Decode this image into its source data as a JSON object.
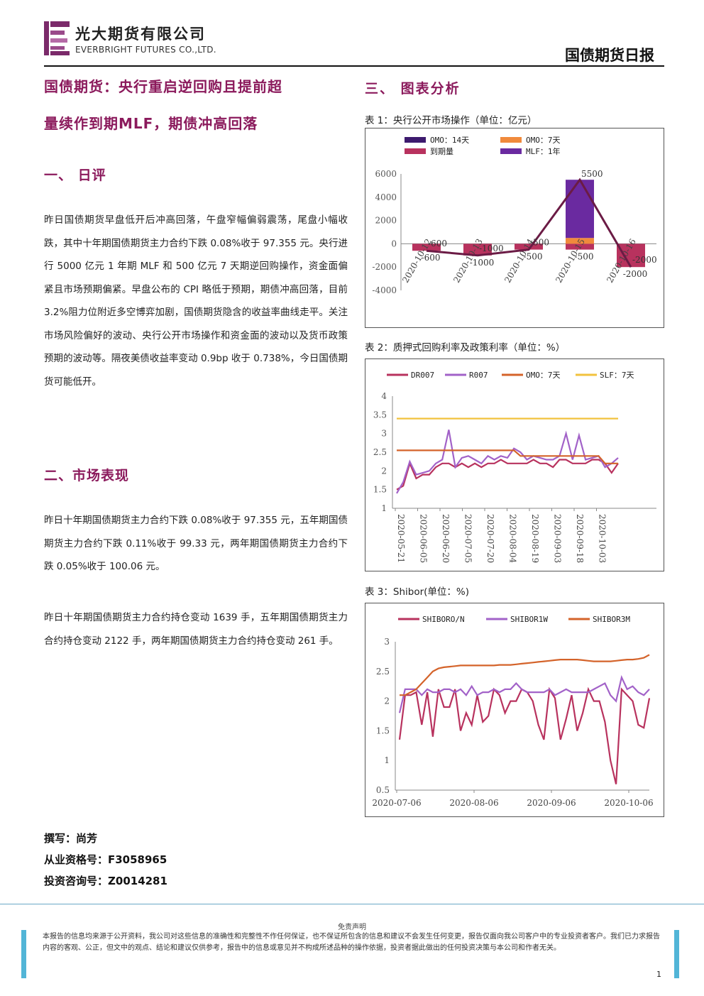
{
  "header": {
    "company_cn": "光大期货有限公司",
    "company_en": "EVERBRIGHT FUTURES CO.,LTD.",
    "doc_type": "国债期货日报"
  },
  "title": {
    "line1": "国债期货：央行重启逆回购且提前超",
    "line2": "量续作到期MLF，期债冲高回落"
  },
  "section1": {
    "heading": "一、  日评",
    "paragraph": "昨日国债期货早盘低开后冲高回落，午盘窄幅偏弱震荡，尾盘小幅收跌，其中十年期国债期货主力合约下跌 0.08%收于 97.355 元。央行进行 5000 亿元 1 年期 MLF 和 500 亿元 7 天期逆回购操作，资金面偏紧且市场预期偏紧。早盘公布的 CPI 略低于预期，期债冲高回落，目前 3.2%阻力位附近多空博弈加剧，国债期货隐含的收益率曲线走平。关注市场风险偏好的波动、央行公开市场操作和资金面的波动以及货币政策预期的波动等。隔夜美债收益率变动 0.9bp 收于 0.738%，今日国债期货可能低开。"
  },
  "section2": {
    "heading": "二、市场表现",
    "para1": "昨日十年期国债期货主力合约下跌 0.08%收于 97.355 元，五年期国债期货主力合约下跌 0.11%收于 99.33 元，两年期国债期货主力合约下跌 0.05%收于 100.06 元。",
    "para2": "昨日十年期国债期货主力合约持仓变动 1639 手，五年期国债期货主力合约持仓变动 2122 手，两年期国债期货主力合约持仓变动 261 手。"
  },
  "section3": {
    "heading": "三、  图表分析"
  },
  "author": {
    "writer": "撰写：尚芳",
    "qualification": "从业资格号：F3058965",
    "consult": "投资咨询号：Z0014281"
  },
  "footer": {
    "disclaimer_title": "免责声明",
    "disclaimer": "本报告的信息均来源于公开资料，我公司对这些信息的准确性和完整性不作任何保证，也不保证所包含的信息和建议不会发生任何变更，报告仅面向我公司客户中的专业投资者客户。我们已力求报告内容的客观、公正，但文中的观点、结论和建议仅供参考，报告中的信息或意见并不构成所述品种的操作依据，投资者据此做出的任何投资决策与本公司和作者无关。",
    "page": "1"
  },
  "colors": {
    "brand": "#8b1a5c",
    "omo14": "#3d1a6e",
    "omo7": "#f08a3c",
    "due": "#b8325e",
    "mlf": "#6a2aa0",
    "line": "#6b1b45",
    "dr007": "#b8325e",
    "r007": "#a262c8",
    "omo7line": "#d4632a",
    "slf7": "#f2c23e",
    "footer_bar": "#52b5d7"
  },
  "chart_data": [
    {
      "type": "bar",
      "caption": "表 1：央行公开市场操作（单位：亿元）",
      "categories": [
        "2020-10-12",
        "2020-10-13",
        "2020-10-14",
        "2020-10-15",
        "2020-10-16"
      ],
      "series": [
        {
          "name": "OMO：14天",
          "values": [
            0,
            0,
            0,
            0,
            0
          ]
        },
        {
          "name": "OMO：7天",
          "values": [
            0,
            0,
            0,
            500,
            0
          ]
        },
        {
          "name": "到期量",
          "values": [
            -600,
            -1000,
            -500,
            -500,
            -2000
          ]
        },
        {
          "name": "MLF：1年",
          "values": [
            0,
            0,
            0,
            5000,
            0
          ]
        }
      ],
      "net_line": [
        -600,
        -1000,
        -500,
        5500,
        -2000
      ],
      "net_labels": [
        "-600",
        "-1000",
        "-500",
        "5500",
        "-2000"
      ],
      "bar_labels": [
        "-600",
        "-1000",
        "-500",
        "-500",
        "-2000"
      ],
      "yticks": [
        "6000",
        "4000",
        "2000",
        "0",
        "-2000",
        "-4000"
      ],
      "ylim": [
        -4000,
        6000
      ]
    },
    {
      "type": "line",
      "caption": "表 2：质押式回购利率及政策利率（单位：%）",
      "xticks": [
        "2020-05-21",
        "2020-06-05",
        "2020-06-20",
        "2020-07-05",
        "2020-07-20",
        "2020-08-04",
        "2020-08-19",
        "2020-09-03",
        "2020-09-18",
        "2020-10-03"
      ],
      "yticks": [
        "4",
        "3.5",
        "3",
        "2.5",
        "2",
        "1.5",
        "1"
      ],
      "ylim": [
        1,
        4
      ],
      "series": [
        {
          "name": "DR007",
          "values": [
            1.5,
            1.6,
            2.2,
            1.8,
            1.9,
            1.9,
            2.1,
            2.2,
            2.2,
            2.1,
            2.2,
            2.1,
            2.2,
            2.1,
            2.2,
            2.2,
            2.3,
            2.2,
            2.2,
            2.2,
            2.2,
            2.3,
            2.2,
            2.2,
            2.1,
            2.3,
            2.3,
            2.2,
            2.2,
            2.2,
            2.3,
            2.3,
            2.2,
            1.95,
            2.2
          ]
        },
        {
          "name": "R007",
          "values": [
            1.4,
            1.7,
            2.25,
            1.9,
            1.95,
            2.0,
            2.2,
            2.3,
            3.1,
            2.1,
            2.35,
            2.4,
            2.3,
            2.2,
            2.4,
            2.3,
            2.4,
            2.35,
            2.6,
            2.5,
            2.3,
            2.4,
            2.35,
            2.3,
            2.3,
            2.4,
            3.0,
            2.3,
            2.95,
            2.3,
            2.35,
            2.4,
            2.1,
            2.2,
            2.35
          ]
        },
        {
          "name": "OMO：7天",
          "values": [
            2.55,
            2.55,
            2.55,
            2.55,
            2.55,
            2.55,
            2.55,
            2.55,
            2.55,
            2.55,
            2.55,
            2.55,
            2.55,
            2.55,
            2.55,
            2.55,
            2.55,
            2.55,
            2.55,
            2.4,
            2.4,
            2.4,
            2.4,
            2.4,
            2.4,
            2.4,
            2.4,
            2.4,
            2.4,
            2.4,
            2.4,
            2.4,
            2.2,
            2.2,
            2.2
          ]
        },
        {
          "name": "SLF：7天",
          "values": [
            3.4,
            3.4,
            3.4,
            3.4,
            3.4,
            3.4,
            3.4,
            3.4,
            3.4,
            3.4,
            3.4,
            3.4,
            3.4,
            3.4,
            3.4,
            3.4,
            3.4,
            3.4,
            3.4,
            3.4,
            3.4,
            3.4,
            3.4,
            3.4,
            3.4,
            3.4,
            3.4,
            3.4,
            3.4,
            3.4,
            3.4,
            3.4,
            3.4,
            3.4,
            3.4
          ]
        }
      ]
    },
    {
      "type": "line",
      "caption": "表 3：Shibor(单位：%)",
      "xticks": [
        "2020-07-06",
        "2020-08-06",
        "2020-09-06",
        "2020-10-06"
      ],
      "yticks": [
        "3",
        "2.5",
        "2",
        "1.5",
        "1",
        "0.5"
      ],
      "ylim": [
        0.5,
        3
      ],
      "series": [
        {
          "name": "SHIBORO/N",
          "values": [
            1.35,
            2.1,
            2.1,
            2.15,
            1.6,
            2.15,
            1.4,
            2.2,
            1.9,
            1.9,
            2.2,
            1.5,
            1.8,
            1.6,
            2.1,
            1.65,
            1.75,
            2.2,
            2.1,
            1.8,
            2.0,
            2.0,
            2.2,
            2.15,
            2.0,
            1.6,
            1.35,
            2.2,
            2.05,
            1.35,
            1.7,
            2.1,
            1.5,
            1.8,
            2.2,
            2.0,
            2.0,
            1.65,
            1.0,
            0.6,
            2.2,
            2.1,
            2.0,
            1.6,
            1.55,
            2.05
          ]
        },
        {
          "name": "SHIBOR1W",
          "values": [
            1.8,
            2.2,
            2.2,
            2.2,
            2.1,
            2.2,
            2.15,
            2.15,
            2.2,
            2.2,
            2.15,
            2.2,
            2.1,
            2.25,
            2.1,
            2.15,
            2.15,
            2.2,
            2.15,
            2.2,
            2.2,
            2.3,
            2.2,
            2.15,
            2.15,
            2.15,
            2.15,
            2.2,
            2.1,
            2.15,
            2.2,
            2.15,
            2.15,
            2.15,
            2.15,
            2.2,
            2.25,
            2.3,
            2.1,
            2.0,
            2.4,
            2.2,
            2.25,
            2.15,
            2.1,
            2.2
          ]
        },
        {
          "name": "SHIBOR3M",
          "values": [
            2.1,
            2.1,
            2.15,
            2.2,
            2.3,
            2.4,
            2.5,
            2.55,
            2.57,
            2.58,
            2.59,
            2.6,
            2.6,
            2.6,
            2.6,
            2.6,
            2.6,
            2.6,
            2.61,
            2.61,
            2.61,
            2.62,
            2.63,
            2.64,
            2.65,
            2.66,
            2.67,
            2.68,
            2.69,
            2.7,
            2.7,
            2.7,
            2.7,
            2.69,
            2.68,
            2.67,
            2.67,
            2.67,
            2.67,
            2.68,
            2.69,
            2.7,
            2.7,
            2.71,
            2.73,
            2.78
          ]
        }
      ]
    }
  ]
}
